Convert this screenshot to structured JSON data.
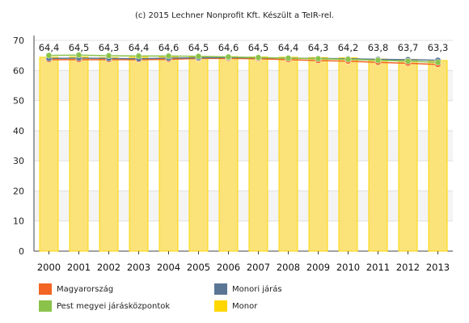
{
  "chart_data": {
    "type": "bar",
    "title": "(c) 2015 Lechner Nonprofit Kft. Készült a TeIR-rel.",
    "categories": [
      "2000",
      "2001",
      "2002",
      "2003",
      "2004",
      "2005",
      "2006",
      "2007",
      "2008",
      "2009",
      "2010",
      "2011",
      "2012",
      "2013"
    ],
    "ylim": [
      0,
      70
    ],
    "yticks": [
      0,
      10,
      20,
      30,
      40,
      50,
      60,
      70
    ],
    "grid": true,
    "bar_series": {
      "name": "Monor",
      "color": "#FFD700",
      "values": [
        64.4,
        64.5,
        64.3,
        64.4,
        64.6,
        64.5,
        64.6,
        64.5,
        64.4,
        64.3,
        64.2,
        63.8,
        63.7,
        63.3
      ],
      "labels": [
        "64,4",
        "64,5",
        "64,3",
        "64,4",
        "64,6",
        "64,5",
        "64,6",
        "64,5",
        "64,4",
        "64,3",
        "64,2",
        "63,8",
        "63,7",
        "63,3"
      ]
    },
    "line_series": [
      {
        "name": "Magyarország",
        "color": "#F26522",
        "values": [
          63.6,
          63.6,
          63.6,
          63.6,
          63.7,
          64.0,
          64.0,
          63.9,
          63.6,
          63.3,
          63.1,
          62.7,
          62.4,
          62.0
        ]
      },
      {
        "name": "Monori járás",
        "color": "#5B7695",
        "values": [
          64.0,
          64.1,
          64.0,
          63.9,
          64.1,
          64.2,
          64.3,
          64.2,
          64.1,
          64.0,
          63.9,
          63.7,
          63.6,
          63.4
        ]
      },
      {
        "name": "Pest megyei járásközpontok",
        "color": "#8BC34A",
        "values": [
          65.0,
          65.1,
          64.9,
          64.8,
          64.8,
          64.7,
          64.5,
          64.3,
          64.1,
          63.9,
          63.7,
          63.4,
          63.1,
          62.7
        ]
      }
    ]
  },
  "legend": [
    {
      "label": "Magyarország",
      "color": "#F26522"
    },
    {
      "label": "Monori járás",
      "color": "#5B7695"
    },
    {
      "label": "Pest megyei járásközpontok",
      "color": "#8BC34A"
    },
    {
      "label": "Monor",
      "color": "#FFD700"
    }
  ]
}
